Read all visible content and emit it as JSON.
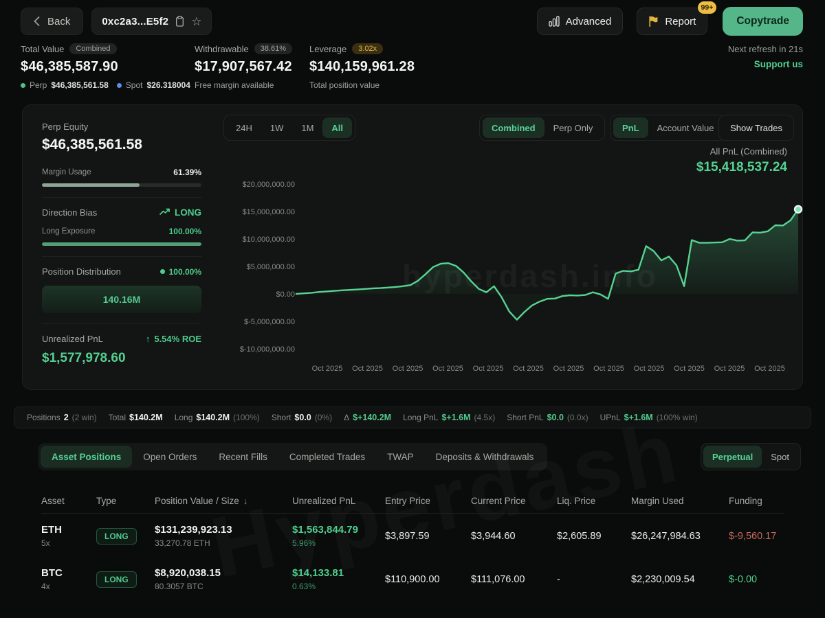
{
  "topbar": {
    "back_label": "Back",
    "address": "0xc2a3...E5f2",
    "advanced_label": "Advanced",
    "report_label": "Report",
    "report_badge": "99+",
    "copytrade_label": "Copytrade"
  },
  "stats": {
    "total": {
      "label": "Total Value",
      "badge": "Combined",
      "value": "$46,385,587.90",
      "perp_label": "Perp",
      "perp_value": "$46,385,561.58",
      "spot_label": "Spot",
      "spot_value": "$26.318004"
    },
    "withdrawable": {
      "label": "Withdrawable",
      "badge": "38.61%",
      "value": "$17,907,567.42",
      "sub": "Free margin available"
    },
    "leverage": {
      "label": "Leverage",
      "badge": "3.02x",
      "value": "$140,159,961.28",
      "sub": "Total position value"
    },
    "refresh_text": "Next refresh in 21s",
    "support_text": "Support us"
  },
  "panel": {
    "perp_equity_label": "Perp Equity",
    "perp_equity_value": "$46,385,561.58",
    "margin_usage_label": "Margin Usage",
    "margin_usage_pct": "61.39%",
    "direction_bias_label": "Direction Bias",
    "direction_bias_value": "LONG",
    "long_exposure_label": "Long Exposure",
    "long_exposure_pct": "100.00%",
    "position_distribution_label": "Position Distribution",
    "position_distribution_pct": "100.00%",
    "distribution_bar_label": "140.16M",
    "unrealized_label": "Unrealized PnL",
    "roe_text": "5.54% ROE",
    "unrealized_value": "$1,577,978.60"
  },
  "chart_controls": {
    "ranges": [
      "24H",
      "1W",
      "1M",
      "All"
    ],
    "modes": [
      "Combined",
      "Perp Only"
    ],
    "metrics": [
      "PnL",
      "Account Value"
    ],
    "show_trades_label": "Show Trades",
    "all_pnl_label": "All PnL (Combined)",
    "all_pnl_value": "$15,418,537.24"
  },
  "chart_data": {
    "type": "area",
    "title": "All PnL (Combined)",
    "unit": "USD",
    "grid": false,
    "legend": "none",
    "ylim_millions": [
      -11,
      21.5
    ],
    "y_ticks_millions": [
      20,
      15,
      10,
      5,
      0,
      -5,
      -10
    ],
    "y_tick_labels": [
      "$20,000,000.00",
      "$15,000,000.00",
      "$10,000,000.00",
      "$5,000,000.00",
      "$0.00",
      "$-5,000,000.00",
      "$-10,000,000.00"
    ],
    "x_tick_labels": [
      "Oct 2025",
      "Oct 2025",
      "Oct 2025",
      "Oct 2025",
      "Oct 2025",
      "Oct 2025",
      "Oct 2025",
      "Oct 2025",
      "Oct 2025",
      "Oct 2025",
      "Oct 2025",
      "Oct 2025"
    ],
    "series": [
      {
        "name": "All PnL (Combined)",
        "values_millions": [
          0,
          0.1,
          0.2,
          0.35,
          0.45,
          0.55,
          0.65,
          0.72,
          0.8,
          0.9,
          1.0,
          1.05,
          1.15,
          1.25,
          1.4,
          1.6,
          2.4,
          3.6,
          4.9,
          5.5,
          5.6,
          5.1,
          3.9,
          2.3,
          0.9,
          0.3,
          1.4,
          -0.6,
          -3.2,
          -4.7,
          -3.3,
          -2.1,
          -1.4,
          -0.9,
          -0.85,
          -0.4,
          -0.25,
          -0.3,
          -0.2,
          0.3,
          -0.1,
          -0.9,
          3.7,
          4.2,
          4.1,
          4.4,
          8.7,
          7.8,
          6.1,
          6.8,
          5.2,
          1.4,
          9.8,
          9.3,
          9.3,
          9.35,
          9.4,
          10.0,
          9.7,
          9.75,
          11.2,
          11.15,
          11.4,
          12.5,
          12.45,
          13.4,
          15.4
        ]
      }
    ],
    "end_value": "$15,418,537.24",
    "line_color": "#57d392",
    "marker": {
      "fill": "#7de2ad",
      "stroke": "#f2f5f2"
    }
  },
  "summary": {
    "items": [
      {
        "label": "Positions",
        "value": "2",
        "extra": "(2 win)"
      },
      {
        "label": "Total",
        "value": "$140.2M",
        "extra": ""
      },
      {
        "label": "Long",
        "value": "$140.2M",
        "extra": "(100%)"
      },
      {
        "label": "Short",
        "value": "$0.0",
        "extra": "(0%)"
      },
      {
        "label": "Δ",
        "value": "$+140.2M",
        "extra": ""
      },
      {
        "label": "Long PnL",
        "value": "$+1.6M",
        "extra": "(4.5x)"
      },
      {
        "label": "Short PnL",
        "value": "$0.0",
        "extra": "(0.0x)"
      },
      {
        "label": "UPnL",
        "value": "$+1.6M",
        "extra": "(100% win)"
      }
    ]
  },
  "tabs": {
    "items": [
      "Asset Positions",
      "Open Orders",
      "Recent Fills",
      "Completed Trades",
      "TWAP",
      "Deposits & Withdrawals"
    ],
    "market": [
      "Perpetual",
      "Spot"
    ]
  },
  "table": {
    "columns": [
      "Asset",
      "Type",
      "Position Value / Size",
      "Unrealized PnL",
      "Entry Price",
      "Current Price",
      "Liq. Price",
      "Margin Used",
      "Funding"
    ],
    "sort_column": "Position Value / Size",
    "rows": [
      {
        "asset": "ETH",
        "leverage": "5x",
        "type": "LONG",
        "value": "$131,239,923.13",
        "size": "33,270.78 ETH",
        "upnl": "$1,563,844.79",
        "upnl_pct": "5.96%",
        "entry": "$3,897.59",
        "current": "$3,944.60",
        "liq": "$2,605.89",
        "margin": "$26,247,984.63",
        "funding": "$-9,560.17"
      },
      {
        "asset": "BTC",
        "leverage": "4x",
        "type": "LONG",
        "value": "$8,920,038.15",
        "size": "80.3057 BTC",
        "upnl": "$14,133.81",
        "upnl_pct": "0.63%",
        "entry": "$110,900.00",
        "current": "$111,076.00",
        "liq": "-",
        "margin": "$2,230,009.54",
        "funding": "$-0.00"
      }
    ]
  },
  "watermark": {
    "chart": "hyperdash.info",
    "table": "Hyperdash"
  },
  "colors": {
    "accent_green": "#55d392",
    "button_green": "#55b789",
    "gold_badge": "#e8bb41",
    "negative_red": "#c9685c",
    "perp_dot": "#4cc38a",
    "spot_dot": "#5b8def",
    "page_bg": "#0a0c0b",
    "card_bg": "#121513"
  }
}
